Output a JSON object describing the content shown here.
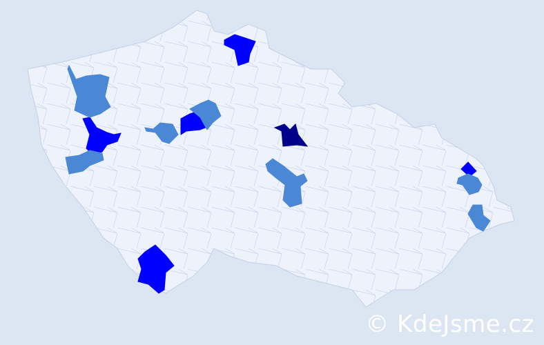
{
  "map": {
    "colors": {
      "background": "#dce6f2",
      "land": "#eef2fa",
      "border": "#c5cfe8",
      "level_low": "#4a88d6",
      "level_mid": "#0000ff",
      "level_high": "#00008b"
    },
    "highlighted_regions": [
      {
        "level": "high"
      },
      {
        "level": "mid"
      },
      {
        "level": "mid"
      },
      {
        "level": "mid"
      },
      {
        "level": "mid"
      },
      {
        "level": "mid"
      },
      {
        "level": "low"
      },
      {
        "level": "low"
      },
      {
        "level": "low"
      },
      {
        "level": "low"
      },
      {
        "level": "low"
      },
      {
        "level": "low"
      },
      {
        "level": "low"
      }
    ]
  },
  "watermark": "© KdeJsme.cz"
}
